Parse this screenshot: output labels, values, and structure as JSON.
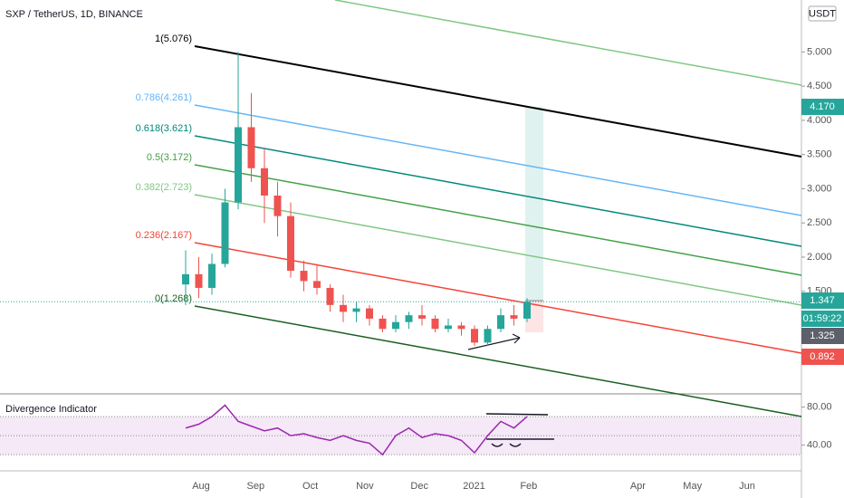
{
  "chart_data": {
    "type": "candlestick",
    "title": "SXP / TetherUS, 1D, BINANCE",
    "currency": "USDT",
    "up_color": "#26a69a",
    "down_color": "#ef5350",
    "open": [
      1.6,
      1.75,
      1.55,
      1.9,
      2.8,
      3.9,
      3.3,
      2.9,
      2.6,
      1.8,
      1.65,
      1.55,
      1.3,
      1.2,
      1.25,
      1.1,
      0.95,
      1.05,
      1.15,
      1.1,
      0.95,
      1.0,
      0.95,
      0.75,
      0.95,
      1.15,
      1.1
    ],
    "high": [
      2.1,
      2.0,
      2.05,
      3.0,
      5.0,
      4.4,
      3.6,
      3.1,
      2.8,
      1.95,
      1.9,
      1.6,
      1.45,
      1.35,
      1.3,
      1.15,
      1.15,
      1.2,
      1.3,
      1.15,
      1.1,
      1.05,
      1.0,
      1.0,
      1.25,
      1.3,
      1.4
    ],
    "low": [
      1.3,
      1.4,
      1.45,
      1.85,
      2.7,
      3.1,
      2.5,
      2.3,
      1.7,
      1.5,
      1.45,
      1.2,
      1.05,
      1.05,
      1.0,
      0.9,
      0.9,
      0.95,
      1.0,
      0.9,
      0.9,
      0.85,
      0.7,
      0.7,
      0.9,
      1.0,
      1.05
    ],
    "close": [
      1.75,
      1.55,
      1.9,
      2.8,
      3.9,
      3.3,
      2.9,
      2.6,
      1.8,
      1.65,
      1.55,
      1.3,
      1.2,
      1.25,
      1.1,
      0.95,
      1.05,
      1.15,
      1.1,
      0.95,
      1.0,
      0.95,
      0.75,
      0.95,
      1.15,
      1.1,
      1.347
    ],
    "ylim": [
      0,
      5.76
    ],
    "yticks": [
      {
        "value": 5,
        "label": "5.000"
      },
      {
        "value": 4.5,
        "label": "4.500"
      },
      {
        "value": 4,
        "label": "4.000"
      },
      {
        "value": 3.5,
        "label": "3.500"
      },
      {
        "value": 3,
        "label": "3.000"
      },
      {
        "value": 2.5,
        "label": "2.500"
      },
      {
        "value": 2,
        "label": "2.000"
      },
      {
        "value": 1.5,
        "label": "1.500"
      }
    ],
    "categories": [
      "Aug",
      "Sep",
      "Oct",
      "Nov",
      "Dec",
      "2021",
      "Feb",
      null,
      "Apr",
      "May",
      "Jun"
    ],
    "fib_levels": [
      {
        "label": "1(5.076)",
        "color": "#000000"
      },
      {
        "label": "0.786(4.261)",
        "color": "#64b5f6"
      },
      {
        "label": "0.618(3.621)",
        "color": "#00897b"
      },
      {
        "label": "0.5(3.172)",
        "color": "#43a047"
      },
      {
        "label": "0.382(2.723)",
        "color": "#81c784"
      },
      {
        "label": "0.236(2.167)",
        "color": "#f44336"
      },
      {
        "label": "0(1.268)",
        "color": "#1b5e20"
      }
    ],
    "price_labels": [
      "4.170",
      "1.347",
      "01:59:22",
      "1.325",
      "0.892"
    ],
    "indicator": {
      "name": "Divergence Indicator",
      "color": "#9c27b0",
      "values": [
        58,
        62,
        70,
        82,
        65,
        60,
        55,
        58,
        50,
        52,
        48,
        45,
        50,
        45,
        42,
        30,
        50,
        58,
        48,
        52,
        50,
        45,
        32,
        50,
        65,
        58,
        70
      ],
      "ylim": [
        13,
        92
      ],
      "yticks": [
        {
          "value": 80,
          "label": "80.00"
        },
        {
          "value": 40,
          "label": "40.00"
        }
      ],
      "bands": [
        30,
        70
      ],
      "midline": 50
    }
  }
}
